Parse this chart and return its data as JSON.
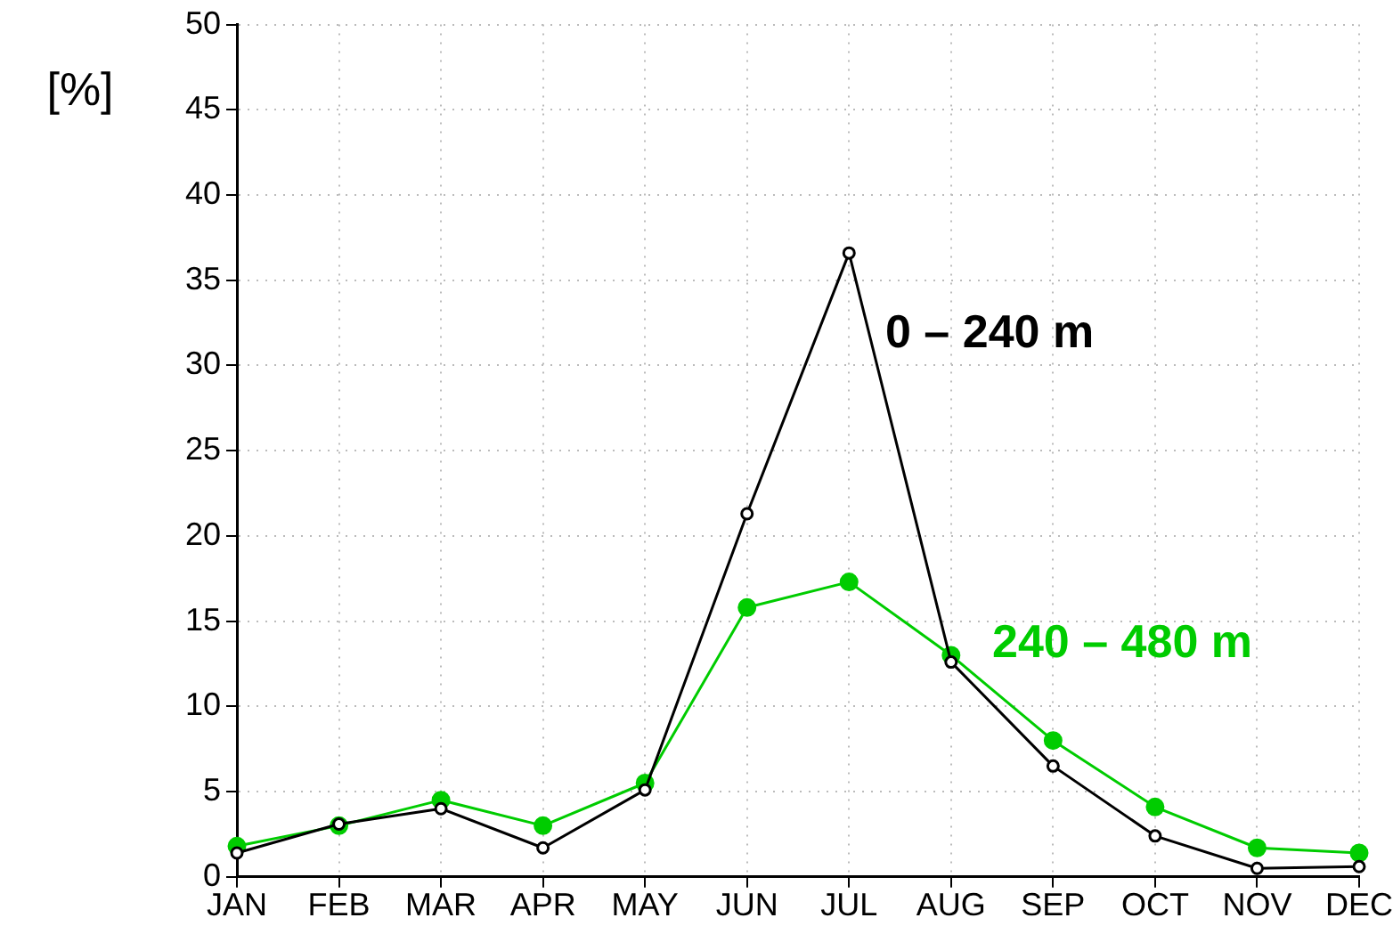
{
  "chart_data": {
    "type": "line",
    "ylabel": "[%]",
    "categories": [
      "JAN",
      "FEB",
      "MAR",
      "APR",
      "MAY",
      "JUN",
      "JUL",
      "AUG",
      "SEP",
      "OCT",
      "NOV",
      "DEC"
    ],
    "series": [
      {
        "name": "0 – 240 m",
        "color": "#000000",
        "values": [
          1.4,
          3.1,
          4.0,
          1.7,
          5.1,
          21.3,
          36.6,
          12.6,
          6.5,
          2.4,
          0.5,
          0.6
        ]
      },
      {
        "name": "240 – 480 m",
        "color": "#00cc00",
        "values": [
          1.8,
          3.0,
          4.5,
          3.0,
          5.5,
          15.8,
          17.3,
          13.0,
          8.0,
          4.1,
          1.7,
          1.4
        ]
      }
    ],
    "ylim": [
      0,
      50
    ],
    "yticks": [
      0,
      5,
      10,
      15,
      20,
      25,
      30,
      35,
      40,
      45,
      50
    ],
    "grid": true,
    "legend": false,
    "marker": "circle",
    "line_style": "solid"
  }
}
